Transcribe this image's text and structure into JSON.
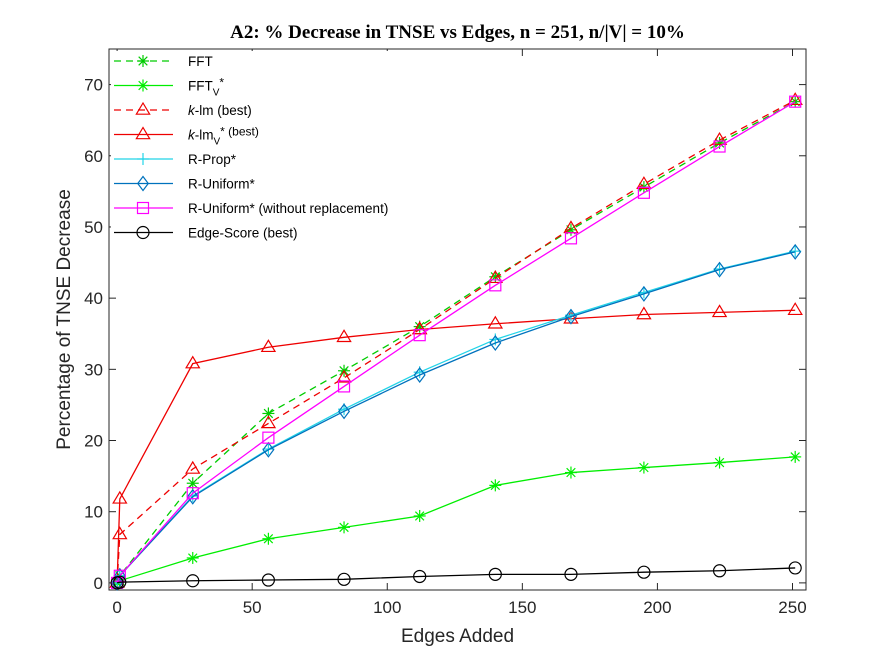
{
  "chart_data": {
    "type": "line",
    "title": "A2: % Decrease in TNSE vs Edges, n = 251, n/|V| = 10%",
    "xlabel": "Edges Added",
    "ylabel": "Percentage of TNSE Decrease",
    "xlim": [
      -3,
      255
    ],
    "ylim": [
      -1,
      75
    ],
    "xticks": [
      0,
      50,
      100,
      150,
      200,
      250
    ],
    "yticks": [
      0,
      10,
      20,
      30,
      40,
      50,
      60,
      70
    ],
    "legend_position": "top-left",
    "series": [
      {
        "name": "FFT",
        "legend": {
          "pre": "FFT",
          "sub": "",
          "post": "",
          "italic": ""
        },
        "color": "#00cc00",
        "dash": true,
        "marker": "asterisk",
        "x": [
          0,
          1,
          28,
          56,
          84,
          112,
          140,
          168,
          195,
          223,
          251
        ],
        "y": [
          0,
          1,
          14,
          23.8,
          29.8,
          36,
          43,
          49.6,
          55.6,
          61.8,
          67.6
        ]
      },
      {
        "name": "FFT_V*",
        "legend": {
          "pre": "FFT",
          "sub": "V",
          "post": "*",
          "italic": ""
        },
        "color": "#00ee00",
        "dash": false,
        "marker": "asterisk",
        "x": [
          0,
          1,
          28,
          56,
          84,
          112,
          140,
          168,
          195,
          223,
          251
        ],
        "y": [
          0,
          0.3,
          3.5,
          6.2,
          7.8,
          9.4,
          13.7,
          15.5,
          16.2,
          16.9,
          17.7
        ]
      },
      {
        "name": "k-lm (best)",
        "legend": {
          "pre": "",
          "sub": "",
          "post": "-lm (best)",
          "italic": "k"
        },
        "color": "#ee0000",
        "dash": true,
        "marker": "triangle",
        "x": [
          0,
          1,
          28,
          56,
          84,
          112,
          140,
          168,
          195,
          223,
          251
        ],
        "y": [
          0,
          6.8,
          16,
          22.4,
          28.8,
          35.6,
          42.8,
          49.8,
          56,
          62.2,
          67.8
        ]
      },
      {
        "name": "k-lm_V* (best)",
        "legend": {
          "pre": "",
          "sub": "V",
          "post": "* (best)",
          "italic": "k",
          "mid": "-lm"
        },
        "color": "#ee0000",
        "dash": false,
        "marker": "triangle",
        "x": [
          0,
          1,
          28,
          56,
          84,
          112,
          140,
          168,
          195,
          223,
          251
        ],
        "y": [
          0,
          11.8,
          30.8,
          33.1,
          34.5,
          35.6,
          36.4,
          37.1,
          37.7,
          38,
          38.3
        ]
      },
      {
        "name": "R-Prop*",
        "legend": {
          "pre": "R-Prop*",
          "sub": "",
          "post": "",
          "italic": ""
        },
        "color": "#22d4e8",
        "dash": false,
        "marker": "plus",
        "x": [
          0,
          1,
          28,
          56,
          84,
          112,
          140,
          168,
          195,
          223,
          251
        ],
        "y": [
          0,
          1,
          12.2,
          18.8,
          24.4,
          29.6,
          34.2,
          37.6,
          40.8,
          44.1,
          46.6
        ]
      },
      {
        "name": "R-Uniform*",
        "legend": {
          "pre": "R-Uniform*",
          "sub": "",
          "post": "",
          "italic": ""
        },
        "color": "#0072bd",
        "dash": false,
        "marker": "diamond",
        "x": [
          0,
          1,
          28,
          56,
          84,
          112,
          140,
          168,
          195,
          223,
          251
        ],
        "y": [
          0,
          1,
          12.1,
          18.7,
          24.1,
          29.2,
          33.7,
          37.4,
          40.6,
          44,
          46.5
        ]
      },
      {
        "name": "R-Uniform* (without replacement)",
        "legend": {
          "pre": "R-Uniform* (without replacement)",
          "sub": "",
          "post": "",
          "italic": ""
        },
        "color": "#ff00ff",
        "dash": false,
        "marker": "square",
        "x": [
          0,
          1,
          28,
          56,
          84,
          112,
          140,
          168,
          195,
          223,
          251
        ],
        "y": [
          0,
          1,
          12.6,
          20.4,
          27.6,
          34.8,
          41.8,
          48.4,
          54.8,
          61.3,
          67.6
        ]
      },
      {
        "name": "Edge-Score (best)",
        "legend": {
          "pre": "Edge-Score (best)",
          "sub": "",
          "post": "",
          "italic": ""
        },
        "color": "#000000",
        "dash": false,
        "marker": "circle",
        "x": [
          0,
          1,
          28,
          56,
          84,
          112,
          140,
          168,
          195,
          223,
          251
        ],
        "y": [
          0,
          0.1,
          0.3,
          0.4,
          0.5,
          0.9,
          1.2,
          1.2,
          1.5,
          1.7,
          2.1
        ]
      }
    ]
  }
}
